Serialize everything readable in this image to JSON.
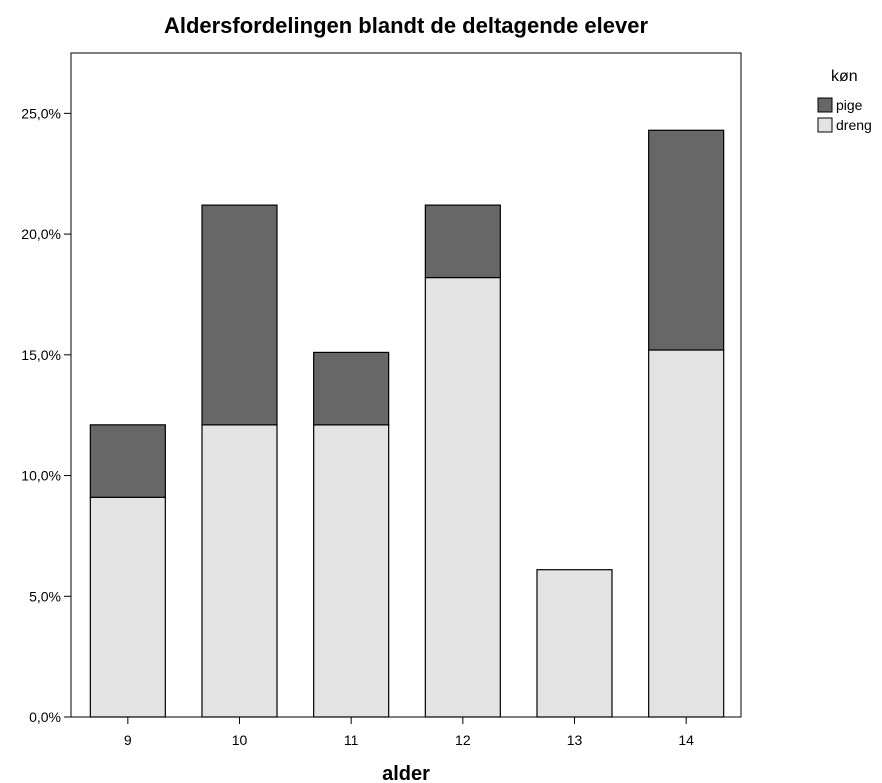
{
  "chart_data": {
    "type": "bar",
    "stacked": true,
    "title": "Aldersfordelingen blandt de deltagende elever",
    "xlabel": "alder",
    "ylabel": "",
    "categories": [
      "9",
      "10",
      "11",
      "12",
      "13",
      "14"
    ],
    "series": [
      {
        "name": "dreng",
        "color": "#e3e3e3",
        "values": [
          9.1,
          12.1,
          12.1,
          18.2,
          6.1,
          15.2
        ]
      },
      {
        "name": "pige",
        "color": "#676767",
        "values": [
          3.0,
          9.1,
          3.0,
          3.0,
          0.0,
          9.1
        ]
      }
    ],
    "ylim": [
      0,
      27.5
    ],
    "yticks": [
      0,
      5,
      10,
      15,
      20,
      25
    ],
    "ytick_labels": [
      "0,0%",
      "5,0%",
      "10,0%",
      "15,0%",
      "20,0%",
      "25,0%"
    ],
    "legend": {
      "title": "køn",
      "position": "top-right",
      "order": [
        "pige",
        "dreng"
      ]
    },
    "grid": false
  }
}
